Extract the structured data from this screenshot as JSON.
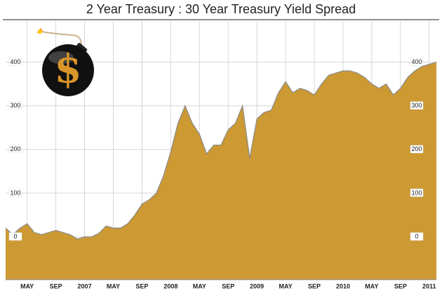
{
  "chart_data": {
    "type": "area",
    "title": "2 Year Treasury : 30 Year Treasury Yield Spread",
    "x": [
      "2006-02",
      "2006-03",
      "2006-04",
      "2006-05",
      "2006-06",
      "2006-07",
      "2006-08",
      "2006-09",
      "2006-10",
      "2006-11",
      "2006-12",
      "2007-01",
      "2007-02",
      "2007-03",
      "2007-04",
      "2007-05",
      "2007-06",
      "2007-07",
      "2007-08",
      "2007-09",
      "2007-10",
      "2007-11",
      "2007-12",
      "2008-01",
      "2008-02",
      "2008-03",
      "2008-04",
      "2008-05",
      "2008-06",
      "2008-07",
      "2008-08",
      "2008-09",
      "2008-10",
      "2008-11",
      "2008-12",
      "2009-01",
      "2009-02",
      "2009-03",
      "2009-04",
      "2009-05",
      "2009-06",
      "2009-07",
      "2009-08",
      "2009-09",
      "2009-10",
      "2009-11",
      "2009-12",
      "2010-01",
      "2010-02",
      "2010-03",
      "2010-04",
      "2010-05",
      "2010-06",
      "2010-07",
      "2010-08",
      "2010-09",
      "2010-10",
      "2010-11",
      "2010-12",
      "2011-01",
      "2011-02"
    ],
    "values": [
      20,
      5,
      20,
      30,
      10,
      5,
      10,
      15,
      10,
      5,
      -5,
      0,
      0,
      8,
      25,
      20,
      20,
      30,
      50,
      75,
      85,
      100,
      140,
      195,
      260,
      300,
      260,
      235,
      190,
      210,
      210,
      245,
      260,
      300,
      180,
      270,
      285,
      290,
      330,
      355,
      330,
      340,
      335,
      325,
      350,
      370,
      375,
      380,
      380,
      375,
      365,
      350,
      340,
      350,
      325,
      340,
      365,
      380,
      390,
      395,
      400
    ],
    "color": "#cc9933",
    "xlim": [
      "2006-02",
      "2011-02"
    ],
    "xticks": [
      {
        "value": "2006-05",
        "label": "MAY"
      },
      {
        "value": "2006-09",
        "label": "SEP"
      },
      {
        "value": "2007-01",
        "label": "2007"
      },
      {
        "value": "2007-05",
        "label": "MAY"
      },
      {
        "value": "2007-09",
        "label": "SEP"
      },
      {
        "value": "2008-01",
        "label": "2008"
      },
      {
        "value": "2008-05",
        "label": "MAY"
      },
      {
        "value": "2008-09",
        "label": "SEP"
      },
      {
        "value": "2009-01",
        "label": "2009"
      },
      {
        "value": "2009-05",
        "label": "MAY"
      },
      {
        "value": "2009-09",
        "label": "SEP"
      },
      {
        "value": "2010-01",
        "label": "2010"
      },
      {
        "value": "2010-05",
        "label": "MAY"
      },
      {
        "value": "2010-09",
        "label": "SEP"
      },
      {
        "value": "2011-01",
        "label": "2011"
      }
    ],
    "ylim": [
      -98,
      494
    ],
    "yticks": [
      0,
      100,
      200,
      300,
      400
    ],
    "grid": true
  }
}
